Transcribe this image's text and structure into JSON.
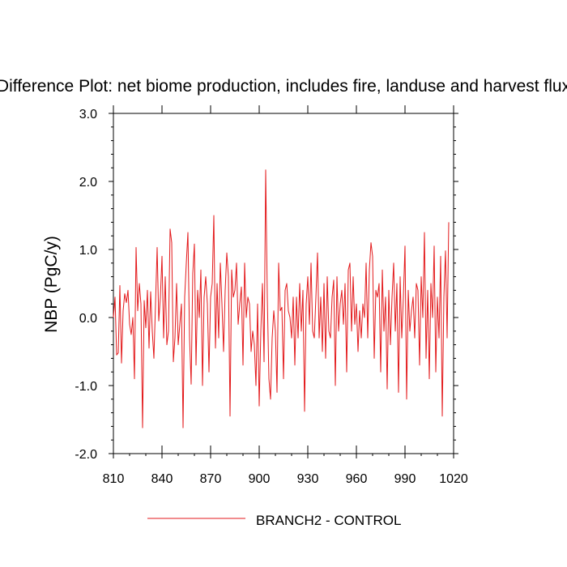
{
  "chart_data": {
    "type": "line",
    "title": "Difference Plot: net biome production, includes fire, landuse and harvest flux",
    "xlabel": "",
    "ylabel": "NBP  (PgC/y)",
    "xlim": [
      810,
      1020
    ],
    "ylim": [
      -2.0,
      3.0
    ],
    "xticks": [
      810,
      840,
      870,
      900,
      930,
      960,
      990,
      1020
    ],
    "xtick_labels": [
      "810",
      "840",
      "870",
      "900",
      "930",
      "960",
      "990",
      "1020"
    ],
    "yticks": [
      -2.0,
      -1.0,
      0.0,
      1.0,
      2.0,
      3.0
    ],
    "ytick_labels": [
      "-2.0",
      "-1.0",
      "0.0",
      "1.0",
      "2.0",
      "3.0"
    ],
    "grid": false,
    "legend_position": "bottom-center",
    "series": [
      {
        "name": "BRANCH2 - CONTROL",
        "color": "#e31a1c",
        "x_start": 810,
        "x_step": 1,
        "values": [
          0.0,
          0.3,
          -0.55,
          -0.52,
          0.47,
          -0.67,
          0.1,
          0.35,
          0.22,
          0.4,
          -0.1,
          -0.25,
          0.0,
          -0.9,
          1.03,
          0.1,
          0.5,
          0.2,
          -1.62,
          0.25,
          -0.15,
          0.4,
          -0.45,
          0.38,
          -0.2,
          -0.6,
          0.2,
          1.03,
          -0.05,
          0.3,
          0.9,
          -0.3,
          0.6,
          -0.4,
          -0.2,
          1.3,
          1.1,
          -0.65,
          -0.3,
          0.5,
          -0.4,
          -0.1,
          0.2,
          -1.62,
          0.3,
          0.8,
          1.25,
          -0.3,
          -0.98,
          0.65,
          1.08,
          -0.7,
          0.4,
          0.0,
          0.7,
          -1.0,
          0.3,
          0.6,
          0.2,
          -0.8,
          0.3,
          0.5,
          1.5,
          -0.45,
          0.5,
          -0.3,
          0.8,
          0.2,
          -0.5,
          0.4,
          0.95,
          0.6,
          -1.45,
          0.7,
          0.3,
          0.4,
          0.8,
          -0.1,
          0.2,
          0.45,
          -0.7,
          0.8,
          0.0,
          0.3,
          0.2,
          -0.5,
          -0.2,
          -0.4,
          -1.0,
          0.2,
          -1.3,
          -0.2,
          0.5,
          -0.65,
          2.17,
          0.3,
          -0.9,
          -1.2,
          -0.3,
          0.1,
          -0.2,
          -1.1,
          0.8,
          0.1,
          0.15,
          -0.9,
          0.4,
          0.5,
          0.1,
          0.0,
          -0.3,
          0.3,
          -0.7,
          0.3,
          -0.3,
          0.5,
          -0.2,
          0.4,
          -1.38,
          0.2,
          0.6,
          -0.1,
          0.8,
          -0.2,
          -0.3,
          0.3,
          0.95,
          -0.3,
          0.3,
          -0.5,
          0.5,
          -0.6,
          0.6,
          -0.2,
          -0.3,
          0.3,
          0.55,
          -1.0,
          0.6,
          -0.2,
          0.2,
          0.4,
          -0.1,
          0.5,
          -0.8,
          0.7,
          0.8,
          -0.2,
          0.6,
          -0.1,
          0.2,
          -0.5,
          0.1,
          -0.3,
          0.2,
          0.0,
          0.8,
          -0.3,
          0.7,
          1.1,
          0.9,
          -0.6,
          0.4,
          0.3,
          0.5,
          -0.8,
          0.7,
          -0.2,
          0.3,
          -1.05,
          0.4,
          -0.4,
          0.3,
          0.8,
          -0.2,
          0.5,
          -1.1,
          0.6,
          -0.3,
          0.3,
          1.05,
          -1.2,
          0.4,
          -0.2,
          0.1,
          0.3,
          -0.3,
          0.5,
          0.4,
          -0.7,
          0.6,
          0.0,
          1.25,
          -0.6,
          0.4,
          -0.9,
          0.5,
          0.0,
          1.05,
          -0.8,
          0.3,
          -0.3,
          0.9,
          -1.45,
          0.3,
          0.98,
          -0.3,
          1.4
        ]
      }
    ]
  }
}
